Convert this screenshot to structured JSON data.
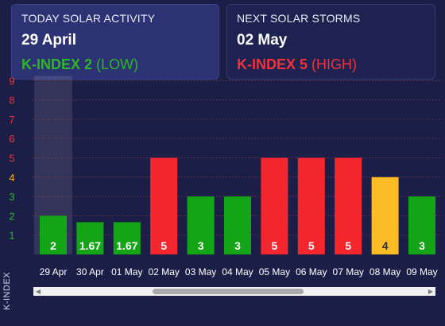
{
  "today": {
    "label": "TODAY SOLAR ACTIVITY",
    "date": "29 April",
    "kindex_label": "K-INDEX 2",
    "level": "(LOW)",
    "color": "#2fb52a"
  },
  "next": {
    "label": "NEXT SOLAR STORMS",
    "date": "02 May",
    "kindex_label": "K-INDEX 5",
    "level": "(HIGH)",
    "color": "#f1323b"
  },
  "chart_data": {
    "type": "bar",
    "ylabel": "K-INDEX",
    "ylim": [
      0,
      9
    ],
    "yticks": [
      1,
      2,
      3,
      4,
      5,
      6,
      7,
      8,
      9
    ],
    "ytick_colors": {
      "low": "#2fb52a",
      "moderate": "#f5b91f",
      "high": "#f1323b"
    },
    "categories": [
      "29 Apr",
      "30 Apr",
      "01 May",
      "02 May",
      "03 May",
      "04 May",
      "05 May",
      "06 May",
      "07 May",
      "08 May",
      "09 May"
    ],
    "values": [
      2,
      1.67,
      1.67,
      5,
      3,
      3,
      5,
      5,
      5,
      4,
      3
    ],
    "bar_colors": [
      "#13a516",
      "#13a516",
      "#13a516",
      "#f3272d",
      "#13a516",
      "#13a516",
      "#f3272d",
      "#f3272d",
      "#f3272d",
      "#fbbc26",
      "#13a516"
    ],
    "highlight_category": "29 Apr",
    "grid": true
  },
  "scrollbar": {
    "left_arrow": "◀",
    "right_arrow": "▶"
  }
}
